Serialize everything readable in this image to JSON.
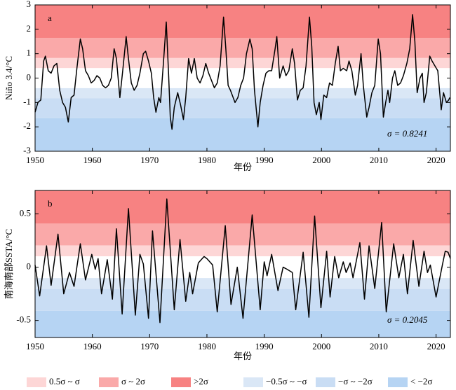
{
  "chart_data": [
    {
      "type": "line",
      "panel_label": "a",
      "ylabel": "Niño 3.4/°C",
      "xlabel": "年份",
      "sigma": 0.8241,
      "sigma_label": "σ = 0.8241",
      "xlim": [
        1950,
        2022.5
      ],
      "xticks": [
        1950,
        1960,
        1970,
        1980,
        1990,
        2000,
        2010,
        2020
      ],
      "ylim": [
        -3,
        3
      ],
      "yticks": [
        -3,
        -2,
        -1,
        0,
        1,
        2,
        3
      ],
      "series": [
        {
          "color": "#000000",
          "x": [
            1950,
            1950.5,
            1951,
            1951.5,
            1951.8,
            1952.3,
            1952.8,
            1953.3,
            1953.8,
            1954.3,
            1954.8,
            1955.3,
            1955.8,
            1956.3,
            1956.8,
            1957.3,
            1957.9,
            1958.3,
            1958.8,
            1959.3,
            1959.8,
            1960.3,
            1960.8,
            1961.3,
            1961.8,
            1962.3,
            1962.8,
            1963.3,
            1963.8,
            1964.2,
            1964.8,
            1965.3,
            1965.9,
            1966.3,
            1966.8,
            1967.3,
            1967.8,
            1968.3,
            1968.9,
            1969.3,
            1969.8,
            1970.3,
            1970.7,
            1971.1,
            1971.6,
            1971.9,
            1972.4,
            1972.9,
            1973.3,
            1973.6,
            1973.9,
            1974.3,
            1974.9,
            1975.4,
            1975.9,
            1976.3,
            1976.8,
            1977.3,
            1977.8,
            1978.3,
            1978.8,
            1979.3,
            1979.8,
            1980.3,
            1980.8,
            1981.3,
            1981.8,
            1982.3,
            1982.9,
            1983.3,
            1983.7,
            1984.1,
            1984.9,
            1985.4,
            1985.9,
            1986.4,
            1986.9,
            1987.5,
            1987.9,
            1988.3,
            1988.9,
            1989.3,
            1989.8,
            1990.3,
            1990.8,
            1991.3,
            1991.9,
            1992.2,
            1992.7,
            1993.3,
            1993.8,
            1994.3,
            1994.9,
            1995.3,
            1995.8,
            1996.3,
            1996.8,
            1997.3,
            1997.9,
            1998.3,
            1998.7,
            1999.1,
            1999.6,
            1999.9,
            2000.4,
            2000.9,
            2001.4,
            2001.9,
            2002.4,
            2002.9,
            2003.3,
            2003.8,
            2004.4,
            2004.8,
            2005.3,
            2005.9,
            2006.3,
            2006.9,
            2007.3,
            2007.9,
            2008.3,
            2008.8,
            2009.3,
            2009.9,
            2010.3,
            2010.8,
            2011.2,
            2011.6,
            2011.9,
            2012.4,
            2012.8,
            2013.3,
            2013.8,
            2014.3,
            2014.9,
            2015.4,
            2015.9,
            2016.3,
            2016.7,
            2017.2,
            2017.6,
            2017.9,
            2018.3,
            2018.9,
            2019.3,
            2019.8,
            2020.3,
            2020.9,
            2021.3,
            2021.8,
            2022.2,
            2022.4
          ],
          "values": [
            -1.4,
            -1.0,
            -0.9,
            0.7,
            0.9,
            0.3,
            0.2,
            0.5,
            0.6,
            -0.5,
            -1.0,
            -1.2,
            -1.8,
            -0.8,
            -0.7,
            0.4,
            1.6,
            1.2,
            0.3,
            0.1,
            -0.2,
            -0.1,
            0.1,
            0.0,
            -0.3,
            -0.4,
            -0.3,
            0.0,
            1.2,
            0.8,
            -0.8,
            0.3,
            1.7,
            0.8,
            -0.2,
            -0.5,
            -0.3,
            0.2,
            1.0,
            1.1,
            0.7,
            0.2,
            -0.8,
            -1.4,
            -0.8,
            -1.0,
            0.6,
            2.3,
            0.2,
            -1.6,
            -2.1,
            -1.2,
            -0.6,
            -1.1,
            -1.7,
            -0.8,
            0.8,
            0.2,
            0.8,
            0.0,
            -0.2,
            0.1,
            0.6,
            0.2,
            -0.1,
            -0.4,
            -0.2,
            0.5,
            2.5,
            1.2,
            -0.3,
            -0.5,
            -1.0,
            -0.8,
            -0.3,
            0.0,
            1.0,
            1.6,
            1.2,
            -0.5,
            -2.0,
            -1.0,
            -0.3,
            0.2,
            0.3,
            0.3,
            1.2,
            1.7,
            0.0,
            0.5,
            0.1,
            0.3,
            1.2,
            0.6,
            -0.9,
            -0.5,
            -0.4,
            0.5,
            2.5,
            1.3,
            -1.0,
            -1.5,
            -1.0,
            -1.7,
            -0.7,
            -0.8,
            -0.2,
            -0.3,
            0.6,
            1.3,
            0.3,
            0.4,
            0.3,
            0.7,
            0.3,
            -0.7,
            -0.3,
            1.0,
            -0.3,
            -1.6,
            -1.2,
            -0.6,
            -0.3,
            1.6,
            1.0,
            -1.6,
            -1.0,
            -0.5,
            -1.0,
            0.0,
            0.3,
            -0.3,
            -0.2,
            0.1,
            0.6,
            1.2,
            2.6,
            1.5,
            -0.6,
            0.0,
            0.2,
            -1.0,
            -0.6,
            0.9,
            0.7,
            0.5,
            0.3,
            -1.3,
            -0.6,
            -1.0,
            -0.9,
            -0.8
          ]
        }
      ]
    },
    {
      "type": "line",
      "panel_label": "b",
      "ylabel": "南海南部SSTA/°C",
      "xlabel": "年份",
      "sigma": 0.2045,
      "sigma_label": "σ = 0.2045",
      "xlim": [
        1950,
        2022.5
      ],
      "xticks": [
        1950,
        1960,
        1970,
        1980,
        1990,
        2000,
        2010,
        2020
      ],
      "ylim": [
        -0.66,
        0.72
      ],
      "yticks": [
        -0.5,
        0,
        0.5
      ],
      "series": [
        {
          "color": "#000000",
          "x": [
            1950,
            1950.8,
            1952.0,
            1952.8,
            1954.0,
            1955.0,
            1956.0,
            1956.8,
            1957.9,
            1958.8,
            1959.9,
            1960.5,
            1961.0,
            1961.6,
            1962.6,
            1963.5,
            1964.2,
            1965.2,
            1966.3,
            1967.5,
            1968.3,
            1968.9,
            1969.8,
            1970.5,
            1971.8,
            1973.0,
            1974.3,
            1975.3,
            1976.3,
            1977.0,
            1977.5,
            1978.5,
            1979.5,
            1980.0,
            1981.0,
            1981.8,
            1983.2,
            1984.2,
            1985.3,
            1986.3,
            1987.9,
            1989.3,
            1990.0,
            1990.5,
            1991.3,
            1992.4,
            1993.3,
            1994.0,
            1994.9,
            1995.5,
            1996.8,
            1997.8,
            1998.8,
            1999.9,
            2000.9,
            2001.5,
            2002.3,
            2003.0,
            2003.8,
            2004.3,
            2005.0,
            2005.5,
            2006.7,
            2007.5,
            2008.3,
            2009.3,
            2010.5,
            2011.3,
            2012.6,
            2013.5,
            2014.3,
            2015.0,
            2016.0,
            2017.0,
            2017.9,
            2018.5,
            2019.0,
            2020.0,
            2021.1,
            2021.6,
            2022.1,
            2022.5
          ],
          "values": [
            0.02,
            -0.27,
            0.2,
            -0.17,
            0.31,
            -0.25,
            -0.05,
            -0.18,
            0.22,
            -0.12,
            0.12,
            -0.02,
            0.08,
            -0.25,
            0.07,
            -0.3,
            0.36,
            -0.44,
            0.55,
            -0.45,
            0.12,
            0.03,
            -0.48,
            0.34,
            -0.52,
            0.64,
            -0.4,
            0.26,
            -0.32,
            -0.05,
            -0.25,
            0.04,
            0.1,
            0.08,
            0.02,
            -0.42,
            0.39,
            -0.35,
            0.0,
            -0.48,
            0.49,
            -0.4,
            0.05,
            -0.08,
            0.12,
            -0.22,
            0.0,
            -0.02,
            -0.05,
            -0.4,
            0.14,
            -0.47,
            0.48,
            -0.38,
            0.15,
            -0.28,
            0.1,
            -0.1,
            0.05,
            -0.05,
            0.04,
            -0.1,
            0.23,
            -0.3,
            0.2,
            -0.2,
            0.42,
            -0.42,
            0.22,
            -0.1,
            0.12,
            -0.25,
            0.25,
            -0.18,
            0.15,
            -0.05,
            0.02,
            -0.28,
            0.02,
            0.15,
            0.14,
            0.08
          ]
        }
      ]
    }
  ],
  "legend": [
    {
      "label": "0.5σ ~ σ",
      "color": "#fdd6d6"
    },
    {
      "label": "σ ~ 2σ",
      "color": "#faa9a9"
    },
    {
      "label": ">2σ",
      "color": "#f78282"
    },
    {
      "label": "−0.5σ ~ −σ",
      "color": "#dae7f6"
    },
    {
      "label": "−σ ~ −2σ",
      "color": "#c9ddf4"
    },
    {
      "label": "< −2σ",
      "color": "#b6d4f3"
    }
  ]
}
